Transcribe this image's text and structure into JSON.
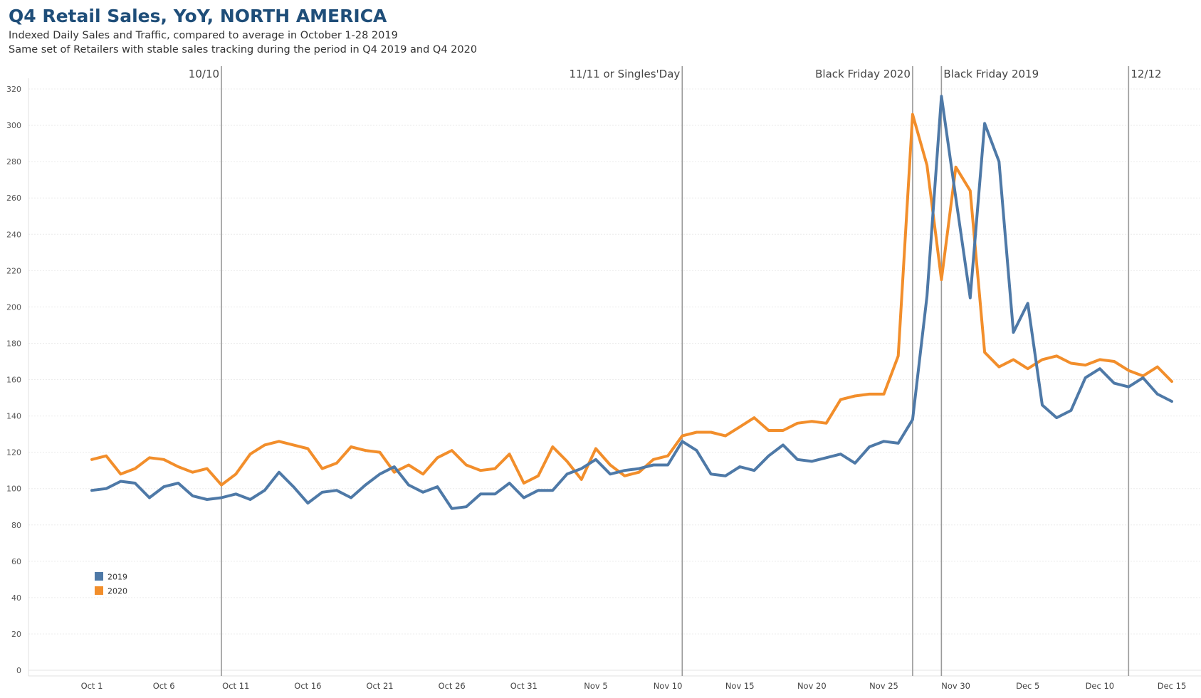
{
  "header": {
    "title": "Q4 Retail Sales, YoY, NORTH AMERICA",
    "subtitle_1": "Indexed Daily Sales and Traffic, compared to average in October 1-28 2019",
    "subtitle_2": "Same set of Retailers with stable sales tracking during the period in Q4 2019 and Q4 2020"
  },
  "chart_data": {
    "type": "line",
    "title": "Q4 Retail Sales, YoY, NORTH AMERICA",
    "xlabel": "",
    "ylabel": "",
    "x": [
      1,
      2,
      3,
      4,
      5,
      6,
      7,
      8,
      9,
      10,
      11,
      12,
      13,
      14,
      15,
      16,
      17,
      18,
      19,
      20,
      21,
      22,
      23,
      24,
      25,
      26,
      27,
      28,
      29,
      30,
      31,
      32,
      33,
      34,
      35,
      36,
      37,
      38,
      39,
      40,
      41,
      42,
      43,
      44,
      45,
      46,
      47,
      48,
      49,
      50,
      51,
      52,
      53,
      54,
      55,
      56,
      57,
      58,
      59,
      60,
      61,
      62,
      63,
      64,
      65,
      66,
      67,
      68,
      69,
      70,
      71,
      72,
      73,
      74,
      75,
      76
    ],
    "ylim": [
      0,
      330
    ],
    "yticks": [
      0,
      20,
      40,
      60,
      80,
      100,
      120,
      140,
      160,
      180,
      200,
      220,
      240,
      260,
      280,
      300,
      320
    ],
    "xticks": [
      {
        "x": 1,
        "label": "Oct 1"
      },
      {
        "x": 6,
        "label": "Oct 6"
      },
      {
        "x": 11,
        "label": "Oct 11"
      },
      {
        "x": 16,
        "label": "Oct 16"
      },
      {
        "x": 21,
        "label": "Oct 21"
      },
      {
        "x": 26,
        "label": "Oct 26"
      },
      {
        "x": 31,
        "label": "Oct 31"
      },
      {
        "x": 36,
        "label": "Nov 5"
      },
      {
        "x": 41,
        "label": "Nov 10"
      },
      {
        "x": 46,
        "label": "Nov 15"
      },
      {
        "x": 51,
        "label": "Nov 20"
      },
      {
        "x": 56,
        "label": "Nov 25"
      },
      {
        "x": 61,
        "label": "Nov 30"
      },
      {
        "x": 66,
        "label": "Dec 5"
      },
      {
        "x": 71,
        "label": "Dec 10"
      },
      {
        "x": 76,
        "label": "Dec 15"
      }
    ],
    "grid": true,
    "legend_position": "bottom-left",
    "series": [
      {
        "name": "2019",
        "color": "#4e79a7",
        "values": [
          99,
          100,
          104,
          103,
          95,
          101,
          103,
          96,
          94,
          95,
          97,
          94,
          99,
          109,
          101,
          92,
          98,
          99,
          95,
          102,
          108,
          112,
          102,
          98,
          101,
          89,
          90,
          97,
          97,
          103,
          95,
          99,
          99,
          108,
          111,
          116,
          108,
          110,
          111,
          113,
          113,
          126,
          121,
          108,
          107,
          112,
          110,
          118,
          124,
          116,
          115,
          117,
          119,
          114,
          123,
          126,
          125,
          138,
          206,
          316,
          260,
          205,
          301,
          280,
          186,
          202,
          146,
          139,
          143,
          161,
          166,
          158,
          156,
          161,
          152,
          148
        ]
      },
      {
        "name": "2020",
        "color": "#f28e2b",
        "values": [
          116,
          118,
          108,
          111,
          117,
          116,
          112,
          109,
          111,
          102,
          108,
          119,
          124,
          126,
          124,
          122,
          111,
          114,
          123,
          121,
          120,
          109,
          113,
          108,
          117,
          121,
          113,
          110,
          111,
          119,
          103,
          107,
          123,
          115,
          105,
          122,
          113,
          107,
          109,
          116,
          118,
          129,
          131,
          131,
          129,
          134,
          139,
          132,
          132,
          136,
          137,
          136,
          149,
          151,
          152,
          152,
          173,
          306,
          278,
          215,
          277,
          264,
          175,
          167,
          171,
          166,
          171,
          173,
          169,
          168,
          171,
          170,
          165,
          162,
          167,
          159
        ]
      }
    ],
    "annotations": [
      {
        "x": 10,
        "label": "10/10",
        "anchor": "end"
      },
      {
        "x": 42,
        "label": "11/11 or Singles'Day",
        "anchor": "end"
      },
      {
        "x": 58,
        "label": "Black Friday 2020",
        "anchor": "end"
      },
      {
        "x": 60,
        "label": "Black Friday 2019",
        "anchor": "start"
      },
      {
        "x": 73,
        "label": "12/12",
        "anchor": "start"
      }
    ]
  }
}
